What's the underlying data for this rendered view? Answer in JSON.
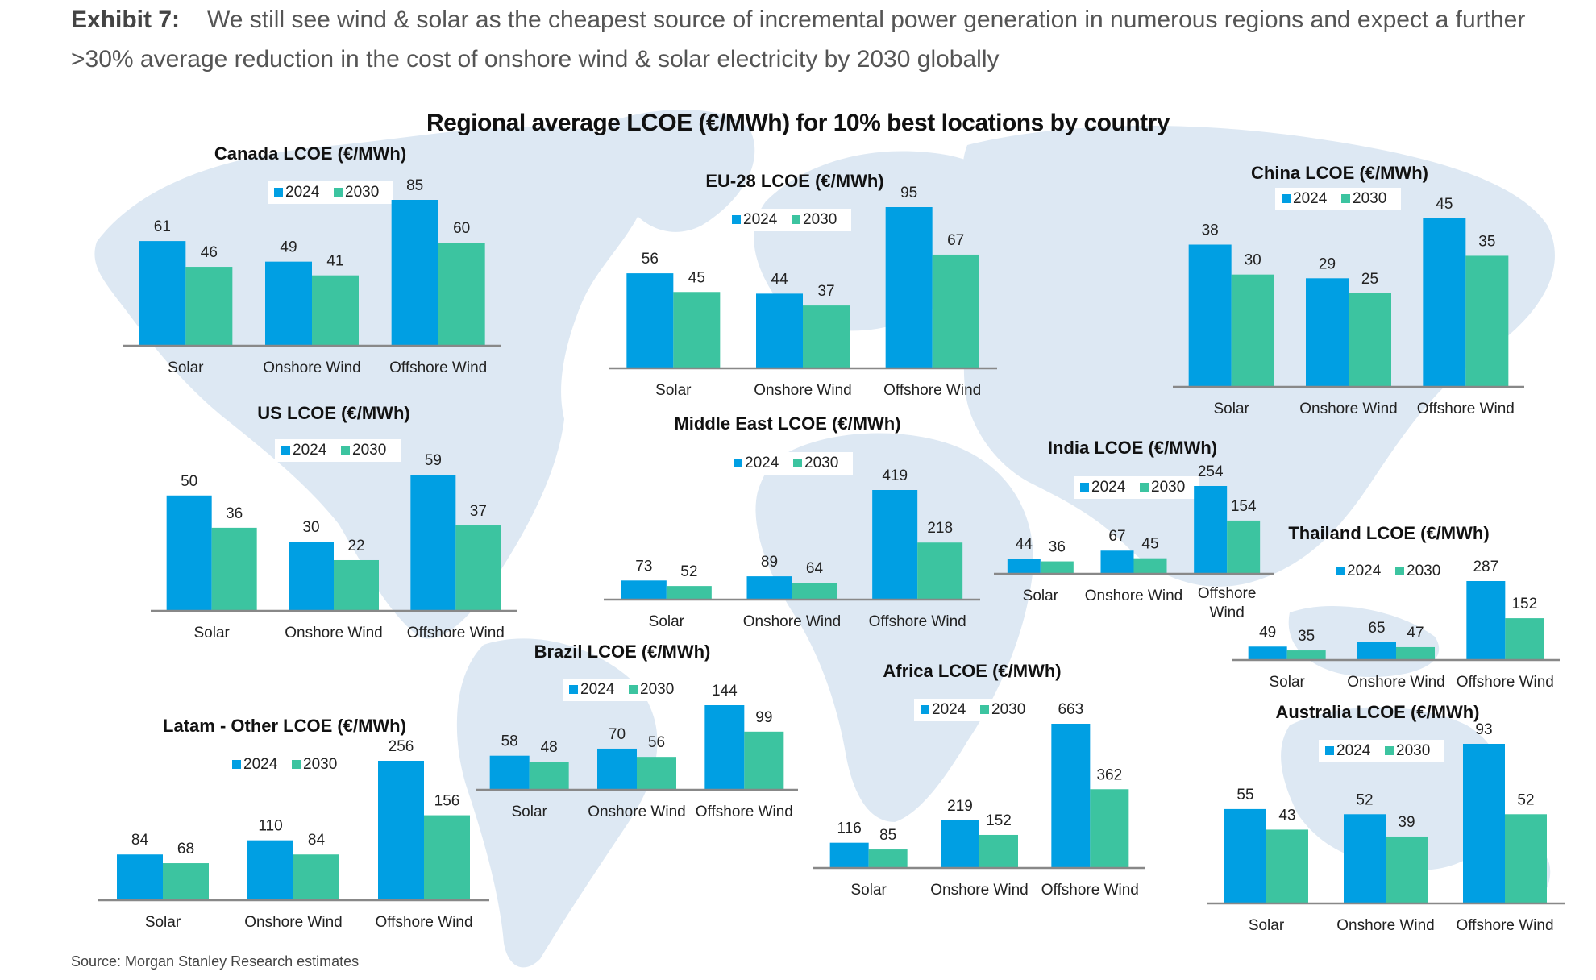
{
  "header": {
    "exhibit_label": "Exhibit 7:",
    "text": "We still see wind & solar as the cheapest source of incremental power generation in numerous regions and expect a further >30% average reduction in the cost of onshore wind & solar electricity by 2030 globally"
  },
  "footer": {
    "source": "Source: Morgan Stanley Research estimates"
  },
  "colors": {
    "series_2024": "#009fe3",
    "series_2030": "#3cc4a0",
    "map": "#dde8f3",
    "axis": "#888888"
  },
  "chart_data": {
    "title": "Regional average LCOE (€/MWh) for 10% best locations by country",
    "type": "bar",
    "categories": [
      "Solar",
      "Onshore Wind",
      "Offshore Wind"
    ],
    "legend": [
      "2024",
      "2030"
    ],
    "unit": "€/MWh",
    "charts": [
      {
        "id": "canada",
        "title": "Canada LCOE (€/MWh)",
        "categories": [
          "Solar",
          "Onshore Wind",
          "Offshore Wind"
        ],
        "series": [
          {
            "name": "2024",
            "values": [
              61,
              49,
              85
            ]
          },
          {
            "name": "2030",
            "values": [
              46,
              41,
              60
            ]
          }
        ]
      },
      {
        "id": "eu28",
        "title": "EU-28 LCOE (€/MWh)",
        "categories": [
          "Solar",
          "Onshore Wind",
          "Offshore Wind"
        ],
        "series": [
          {
            "name": "2024",
            "values": [
              56,
              44,
              95
            ]
          },
          {
            "name": "2030",
            "values": [
              45,
              37,
              67
            ]
          }
        ]
      },
      {
        "id": "china",
        "title": "China LCOE (€/MWh)",
        "categories": [
          "Solar",
          "Onshore Wind",
          "Offshore Wind"
        ],
        "series": [
          {
            "name": "2024",
            "values": [
              38,
              29,
              45
            ]
          },
          {
            "name": "2030",
            "values": [
              30,
              25,
              35
            ]
          }
        ]
      },
      {
        "id": "us",
        "title": "US LCOE (€/MWh)",
        "categories": [
          "Solar",
          "Onshore Wind",
          "Offshore Wind"
        ],
        "series": [
          {
            "name": "2024",
            "values": [
              50,
              30,
              59
            ]
          },
          {
            "name": "2030",
            "values": [
              36,
              22,
              37
            ]
          }
        ]
      },
      {
        "id": "middle_east",
        "title": "Middle East LCOE (€/MWh)",
        "categories": [
          "Solar",
          "Onshore Wind",
          "Offshore Wind"
        ],
        "series": [
          {
            "name": "2024",
            "values": [
              73,
              89,
              419
            ]
          },
          {
            "name": "2030",
            "values": [
              52,
              64,
              218
            ]
          }
        ]
      },
      {
        "id": "india",
        "title": "India LCOE (€/MWh)",
        "categories": [
          "Solar",
          "Onshore Wind",
          "Offshore Wind"
        ],
        "series": [
          {
            "name": "2024",
            "values": [
              44,
              67,
              254
            ]
          },
          {
            "name": "2030",
            "values": [
              36,
              45,
              154
            ]
          }
        ]
      },
      {
        "id": "thailand",
        "title": "Thailand LCOE (€/MWh)",
        "categories": [
          "Solar",
          "Onshore Wind",
          "Offshore Wind"
        ],
        "series": [
          {
            "name": "2024",
            "values": [
              49,
              65,
              287
            ]
          },
          {
            "name": "2030",
            "values": [
              35,
              47,
              152
            ]
          }
        ]
      },
      {
        "id": "brazil",
        "title": "Brazil LCOE (€/MWh)",
        "categories": [
          "Solar",
          "Onshore Wind",
          "Offshore Wind"
        ],
        "series": [
          {
            "name": "2024",
            "values": [
              58,
              70,
              144
            ]
          },
          {
            "name": "2030",
            "values": [
              48,
              56,
              99
            ]
          }
        ]
      },
      {
        "id": "latam_other",
        "title": "Latam - Other LCOE (€/MWh)",
        "categories": [
          "Solar",
          "Onshore Wind",
          "Offshore Wind"
        ],
        "series": [
          {
            "name": "2024",
            "values": [
              84,
              110,
              256
            ]
          },
          {
            "name": "2030",
            "values": [
              68,
              84,
              156
            ]
          }
        ]
      },
      {
        "id": "africa",
        "title": "Africa LCOE (€/MWh)",
        "categories": [
          "Solar",
          "Onshore Wind",
          "Offshore Wind"
        ],
        "series": [
          {
            "name": "2024",
            "values": [
              116,
              219,
              663
            ]
          },
          {
            "name": "2030",
            "values": [
              85,
              152,
              362
            ]
          }
        ]
      },
      {
        "id": "australia",
        "title": "Australia LCOE (€/MWh)",
        "categories": [
          "Solar",
          "Onshore Wind",
          "Offshore Wind"
        ],
        "series": [
          {
            "name": "2024",
            "values": [
              55,
              52,
              93
            ]
          },
          {
            "name": "2030",
            "values": [
              43,
              39,
              52
            ]
          }
        ]
      }
    ]
  }
}
